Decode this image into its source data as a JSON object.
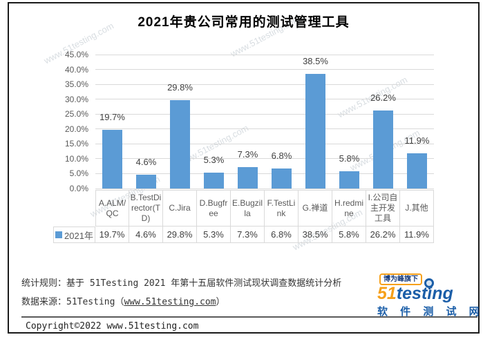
{
  "chart_data": {
    "type": "bar",
    "title": "2021年贵公司常用的测试管理工具",
    "categories": [
      "A.ALM/QC",
      "B.TestDirector(TD)",
      "C.Jira",
      "D.Bugfree",
      "E.Bugzilla",
      "F.TestLink",
      "G.禅道",
      "H.redmine",
      "I.公司自主开发工具",
      "J.其他"
    ],
    "series": [
      {
        "name": "2021年",
        "values": [
          19.7,
          4.6,
          29.8,
          5.3,
          7.3,
          6.8,
          38.5,
          5.8,
          26.2,
          11.9
        ]
      }
    ],
    "value_labels": [
      "19.7%",
      "4.6%",
      "29.8%",
      "5.3%",
      "7.3%",
      "6.8%",
      "38.5%",
      "5.8%",
      "26.2%",
      "11.9%"
    ],
    "ylim": [
      0,
      45
    ],
    "ytick_step": 5,
    "ytick_labels": [
      "0.0%",
      "5.0%",
      "10.0%",
      "15.0%",
      "20.0%",
      "25.0%",
      "30.0%",
      "35.0%",
      "40.0%",
      "45.0%"
    ],
    "grid": true,
    "legend_position": "bottom-data-table",
    "bar_color": "#5B9BD5"
  },
  "watermark": {
    "text": "www.51testing.com"
  },
  "footer": {
    "rule_line": "统计规则：基于 51Testing 2021 年第十五届软件测试现状调查数据统计分析",
    "source_prefix": "数据来源：51Testing（",
    "source_link": "www.51testing.com",
    "source_suffix": "）",
    "copyright": "Copyright©2022 www.51testing.com"
  },
  "logo": {
    "badge": "博为峰旗下",
    "brand": {
      "part_51": "51",
      "part_test": "test",
      "part_i": "i",
      "part_ng": "ng"
    },
    "subtitle": "软 件 测 试 网",
    "colors": {
      "orange": "#F6A01A",
      "blue": "#1B5EA8"
    }
  }
}
